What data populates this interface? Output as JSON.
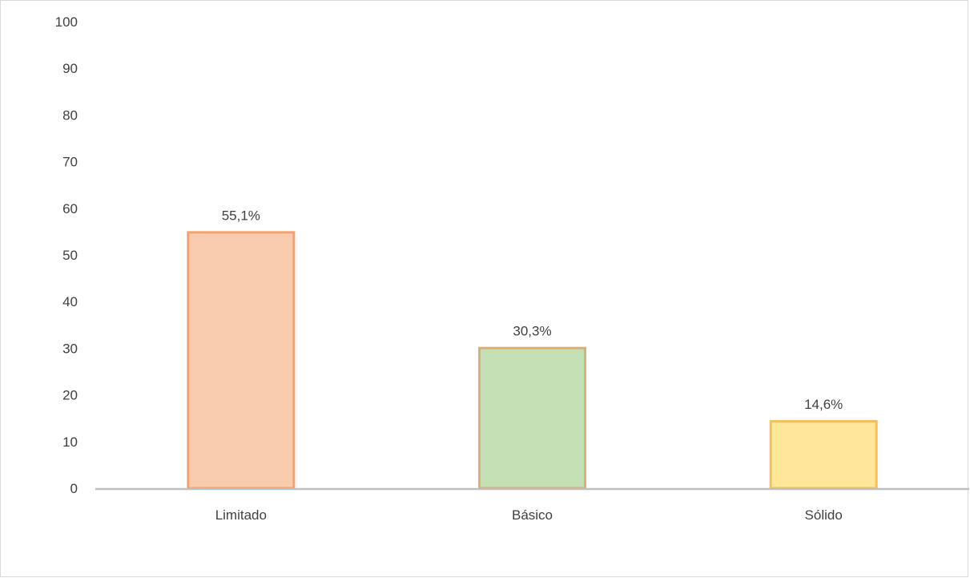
{
  "chart_data": {
    "type": "bar",
    "title": "",
    "xlabel": "",
    "ylabel": "",
    "ylim": [
      0,
      100
    ],
    "yticks": [
      0,
      10,
      20,
      30,
      40,
      50,
      60,
      70,
      80,
      90,
      100
    ],
    "grid": false,
    "legend": "none",
    "categories": [
      "Limitado",
      "Básico",
      "Sólido"
    ],
    "values": [
      55.1,
      30.3,
      14.6
    ],
    "data_labels": [
      "55,1%",
      "30,3%",
      "14,6%"
    ],
    "colors": {
      "fills": [
        "#f8cbad",
        "#c5e0b4",
        "#ffe699"
      ],
      "borders": [
        "#f4a171",
        "#d9b07a",
        "#f6bf5d"
      ],
      "axis": "#bfbfbf",
      "text": "#404040"
    }
  }
}
